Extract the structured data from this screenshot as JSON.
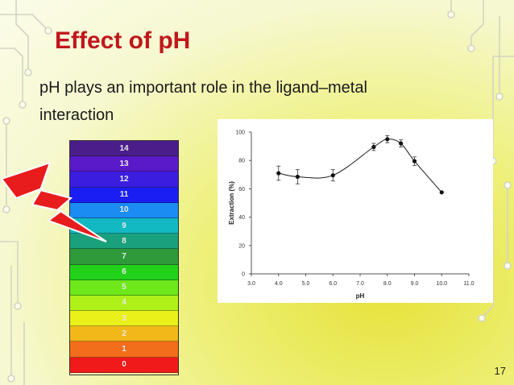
{
  "slide": {
    "title": "Effect of pH",
    "body_line1": "pH plays an important role in the ligand–metal",
    "body_line2": "interaction",
    "page_number": "17"
  },
  "ph_scale": {
    "labels": [
      "14",
      "13",
      "12",
      "11",
      "10",
      "9",
      "8",
      "7",
      "6",
      "5",
      "4",
      "3",
      "2",
      "1",
      "0"
    ],
    "colors": [
      "#4a1e8a",
      "#5a1ac8",
      "#3b1de0",
      "#1a1ef2",
      "#1a8cf2",
      "#12b8c2",
      "#1aa07a",
      "#2e9a3a",
      "#22d21a",
      "#6ee81a",
      "#b0f01a",
      "#eaf01a",
      "#f2b81a",
      "#f26e1a",
      "#f01a1a"
    ]
  },
  "decor": {
    "bolt_icon": "lightning-bolt",
    "bolt_color": "#e81c1c"
  },
  "chart_data": {
    "type": "line",
    "xlabel": "pH",
    "ylabel": "Extraction (%)",
    "xlim": [
      3.0,
      11.0
    ],
    "ylim": [
      0,
      100
    ],
    "x_ticks": [
      "3.0",
      "4.0",
      "5.0",
      "6.0",
      "7.0",
      "8.0",
      "9.0",
      "10.0",
      "11.0"
    ],
    "y_ticks": [
      "0",
      "20",
      "40",
      "60",
      "80",
      "100"
    ],
    "grid": false,
    "series": [
      {
        "x": [
          4.0,
          4.7,
          6.0,
          7.5,
          8.0,
          8.5,
          9.0,
          10.0
        ],
        "y": [
          71,
          68.5,
          69.5,
          89.5,
          95,
          92,
          79.5,
          57.5
        ],
        "err": [
          5,
          5,
          4,
          2.5,
          2.5,
          2.5,
          3,
          0
        ]
      }
    ],
    "line_color": "#1a1a1a"
  }
}
